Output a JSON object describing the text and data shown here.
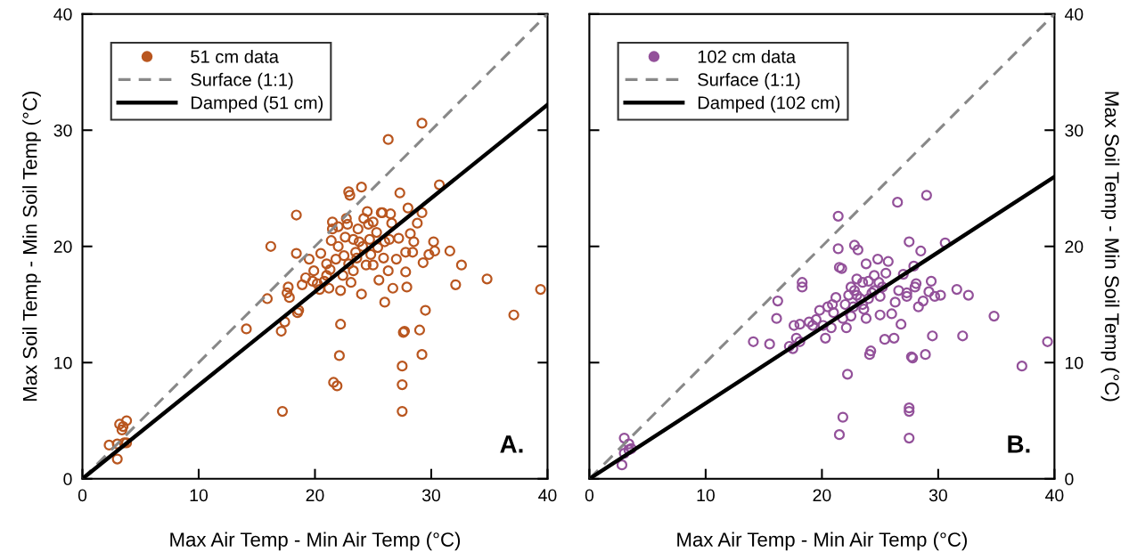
{
  "chart_data": [
    {
      "type": "scatter",
      "xlabel": "Max Air Temp - Min Air Temp (°C)",
      "ylabel": "Max Soil Temp - Min Soil Temp (°C)",
      "xlim": [
        0,
        40
      ],
      "ylim": [
        0,
        40
      ],
      "xticks": [
        0,
        10,
        20,
        30,
        40
      ],
      "yticks": [
        0,
        10,
        20,
        30,
        40
      ],
      "legend": "top left",
      "grid": false,
      "annotations": [
        "A."
      ],
      "series": [
        {
          "name": "51 cm data",
          "marker": "circle",
          "color": "#b9561f",
          "x": [
            2.3,
            3.0,
            3.2,
            3.5,
            3.8,
            3.4,
            3.6,
            3.0,
            3.8,
            14.1,
            15.9,
            16.2,
            17.2,
            17.1,
            17.4,
            17.7,
            17.6,
            17.8,
            18.4,
            18.4,
            18.5,
            18.6,
            18.9,
            19.2,
            19.5,
            19.9,
            20.2,
            20.5,
            20.8,
            21.0,
            21.2,
            21.5,
            21.5,
            21.6,
            21.9,
            22.1,
            22.2,
            22.2,
            22.5,
            22.6,
            22.8,
            22.9,
            23.0,
            23.1,
            23.3,
            23.5,
            23.7,
            23.8,
            24.0,
            24.0,
            24.2,
            24.4,
            24.5,
            24.7,
            25.0,
            25.0,
            25.4,
            25.5,
            25.8,
            26.0,
            26.0,
            26.3,
            26.3,
            26.6,
            26.7,
            27.0,
            27.2,
            27.3,
            27.5,
            27.5,
            27.5,
            27.6,
            27.7,
            27.8,
            27.9,
            28.0,
            28.2,
            28.4,
            28.5,
            28.8,
            29.0,
            29.2,
            29.2,
            29.2,
            29.3,
            29.5,
            29.8,
            30.2,
            30.3,
            30.7,
            31.6,
            32.1,
            32.6,
            34.8,
            37.1,
            39.4,
            21.3,
            21.0,
            21.8,
            22.0,
            22.4,
            22.9,
            23.3,
            23.6,
            24.1,
            24.8,
            25.3,
            25.9,
            26.4,
            20.4,
            19.8,
            22.7,
            24.6,
            25.7,
            26.5,
            27.8,
            21.4,
            22.0
          ],
          "values": [
            2.9,
            1.7,
            4.7,
            4.5,
            5.0,
            4.2,
            3.1,
            3.0,
            3.1,
            12.9,
            15.5,
            20.0,
            5.8,
            12.7,
            13.5,
            16.5,
            16.0,
            15.6,
            22.7,
            19.4,
            14.3,
            14.5,
            16.7,
            17.3,
            18.9,
            17.9,
            16.8,
            19.4,
            17.0,
            18.5,
            16.4,
            22.1,
            21.5,
            8.3,
            8.0,
            10.6,
            13.3,
            16.2,
            19.2,
            20.8,
            21.9,
            24.7,
            24.4,
            16.9,
            17.9,
            19.5,
            21.5,
            20.4,
            25.1,
            15.9,
            22.4,
            18.4,
            23.0,
            20.6,
            22.1,
            18.4,
            19.9,
            17.1,
            22.9,
            20.4,
            15.2,
            29.2,
            17.9,
            22.0,
            16.4,
            18.9,
            20.7,
            24.6,
            9.7,
            8.1,
            5.8,
            12.6,
            12.7,
            17.8,
            16.5,
            23.3,
            21.1,
            19.5,
            20.4,
            22.0,
            12.8,
            30.6,
            22.9,
            10.7,
            18.6,
            14.5,
            19.3,
            20.4,
            19.6,
            25.3,
            19.6,
            16.7,
            18.4,
            17.2,
            14.1,
            16.3,
            18.0,
            17.5,
            18.9,
            20.0,
            17.5,
            18.5,
            20.6,
            19.0,
            20.0,
            19.3,
            21.2,
            19.0,
            20.6,
            16.3,
            17.0,
            22.4,
            21.9,
            22.9,
            22.8,
            19.5,
            20.5,
            21.7
          ]
        },
        {
          "name": "Surface (1:1)",
          "type": "line",
          "line_style": "dashed",
          "color": "#888888",
          "x": [
            0,
            40
          ],
          "values": [
            0,
            40
          ]
        },
        {
          "name": "Damped (51 cm)",
          "type": "line",
          "line_style": "solid",
          "color": "#000000",
          "x": [
            0,
            40
          ],
          "values": [
            0,
            32.2
          ]
        }
      ]
    },
    {
      "type": "scatter",
      "xlabel": "Max Air Temp - Min Air Temp (°C)",
      "y2label": "Max Soil Temp - Min Soil Temp (°C)",
      "xlim": [
        0,
        40
      ],
      "y2lim": [
        0,
        40
      ],
      "xticks": [
        0,
        10,
        20,
        30,
        40
      ],
      "y2ticks": [
        0,
        10,
        20,
        30,
        40
      ],
      "legend": "top left",
      "grid": false,
      "annotations": [
        "B."
      ],
      "series": [
        {
          "name": "102 cm data",
          "marker": "circle",
          "axis": "y2",
          "color": "#93519a",
          "x": [
            2.8,
            3.0,
            3.0,
            3.4,
            3.6,
            3.4,
            14.1,
            15.5,
            16.1,
            16.2,
            17.2,
            17.5,
            17.6,
            17.8,
            18.1,
            18.3,
            18.3,
            18.1,
            18.9,
            19.2,
            19.5,
            19.8,
            20.1,
            20.3,
            20.8,
            20.9,
            21.2,
            21.4,
            21.5,
            21.8,
            21.4,
            21.5,
            21.7,
            21.8,
            22.1,
            22.2,
            22.3,
            22.5,
            22.7,
            22.8,
            23.0,
            23.1,
            23.3,
            23.5,
            23.6,
            23.8,
            24.0,
            24.1,
            24.2,
            24.3,
            24.5,
            24.8,
            25.0,
            25.2,
            25.4,
            25.5,
            25.7,
            26.0,
            26.2,
            26.3,
            26.5,
            26.8,
            27.0,
            27.3,
            27.5,
            27.5,
            27.5,
            27.5,
            27.7,
            27.8,
            27.9,
            28.1,
            28.3,
            28.5,
            28.7,
            28.9,
            29.0,
            29.2,
            29.4,
            29.5,
            29.7,
            30.2,
            30.6,
            31.6,
            32.1,
            32.6,
            34.8,
            37.2,
            39.4,
            22.0,
            22.5,
            23.0,
            23.5,
            24.0,
            24.5,
            25.0,
            21.0,
            20.5,
            22.8,
            23.8,
            24.9,
            26.6,
            27.3,
            28.0
          ],
          "values": [
            1.2,
            2.2,
            3.5,
            2.5,
            2.6,
            3.0,
            11.8,
            11.6,
            13.8,
            15.3,
            11.4,
            11.2,
            13.2,
            12.1,
            11.8,
            16.9,
            16.5,
            13.3,
            13.5,
            13.2,
            13.7,
            14.5,
            13.2,
            12.1,
            13.0,
            15.0,
            15.6,
            22.6,
            3.8,
            5.3,
            19.8,
            18.2,
            18.1,
            13.8,
            13.0,
            9.0,
            15.8,
            16.5,
            14.8,
            20.1,
            17.2,
            19.7,
            15.5,
            16.9,
            14.6,
            18.5,
            17.0,
            10.7,
            11.0,
            16.0,
            17.5,
            18.9,
            14.1,
            16.5,
            12.0,
            17.7,
            18.7,
            14.2,
            12.1,
            15.2,
            23.8,
            13.3,
            17.6,
            16.0,
            20.4,
            6.1,
            5.8,
            3.5,
            10.5,
            10.4,
            18.3,
            16.8,
            14.8,
            19.6,
            15.3,
            10.7,
            24.4,
            16.1,
            17.0,
            12.3,
            15.7,
            15.8,
            20.3,
            16.3,
            12.3,
            15.8,
            14.0,
            9.7,
            11.8,
            15.0,
            14.0,
            15.8,
            15.0,
            15.5,
            16.2,
            15.7,
            14.3,
            14.8,
            16.2,
            13.8,
            16.9,
            16.2,
            15.7,
            16.5
          ]
        },
        {
          "name": "Surface (1:1)",
          "type": "line",
          "axis": "y2",
          "line_style": "dashed",
          "color": "#888888",
          "x": [
            0,
            40
          ],
          "values": [
            0,
            40
          ]
        },
        {
          "name": "Damped (102 cm)",
          "type": "line",
          "axis": "y2",
          "line_style": "solid",
          "color": "#000000",
          "x": [
            0,
            40
          ],
          "values": [
            0,
            26.0
          ]
        }
      ]
    }
  ]
}
